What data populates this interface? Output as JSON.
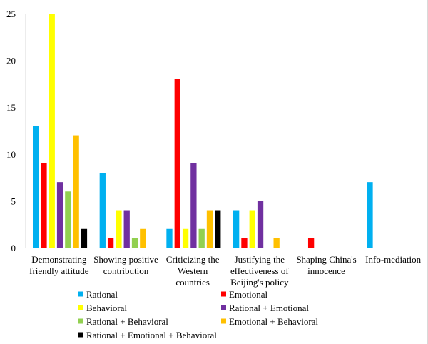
{
  "chart_data": {
    "type": "bar",
    "categories": [
      [
        "Demonstrating",
        "friendly attitude"
      ],
      [
        "Showing positive",
        "contribution"
      ],
      [
        "Criticizing the",
        "Western",
        "countries"
      ],
      [
        "Justifying the",
        "effectiveness of",
        "Beijing's policy"
      ],
      [
        "Shaping China's",
        "innocence"
      ],
      [
        "Info-mediation"
      ]
    ],
    "series": [
      {
        "name": "Rational",
        "color": "#00B0F0",
        "values": [
          13,
          8,
          2,
          4,
          0,
          7
        ]
      },
      {
        "name": "Emotional",
        "color": "#FF0000",
        "values": [
          9,
          1,
          18,
          1,
          1,
          0
        ]
      },
      {
        "name": "Behavioral",
        "color": "#FFFF00",
        "values": [
          25,
          4,
          2,
          4,
          0,
          0
        ]
      },
      {
        "name": "Rational + Emotional",
        "color": "#7030A0",
        "values": [
          7,
          4,
          9,
          5,
          0,
          0
        ]
      },
      {
        "name": "Rational + Behavioral",
        "color": "#92D050",
        "values": [
          6,
          1,
          2,
          0,
          0,
          0
        ]
      },
      {
        "name": "Emotional + Behavioral",
        "color": "#FFC000",
        "values": [
          12,
          2,
          4,
          1,
          0,
          0
        ]
      },
      {
        "name": "Rational + Emotional + Behavioral",
        "color": "#000000",
        "values": [
          2,
          0,
          4,
          0,
          0,
          0
        ]
      }
    ],
    "ylim": [
      0,
      25
    ],
    "yticks": [
      "0",
      "5",
      "10",
      "15",
      "20",
      "25"
    ],
    "grid": false,
    "legend_placement": "bottom"
  }
}
